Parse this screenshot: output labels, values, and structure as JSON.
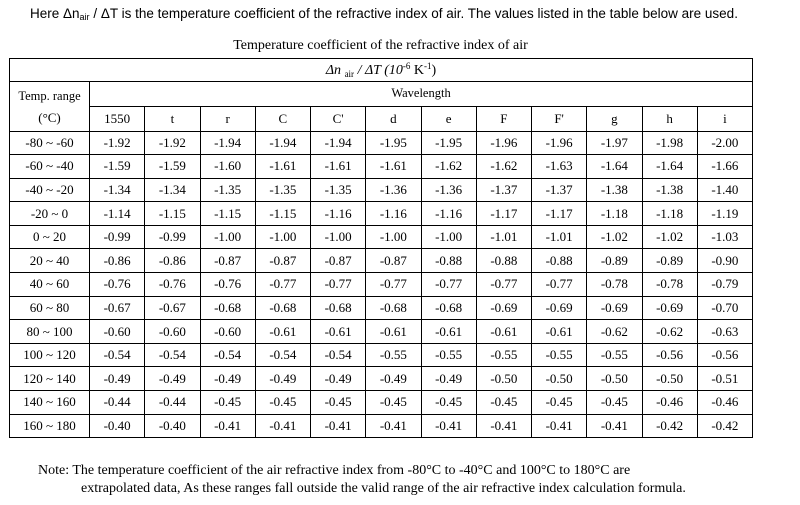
{
  "intro": {
    "prefix": "Here Δn",
    "sub": "air",
    "suffix": " / ΔT is the temperature coefficient of the refractive index of air. The values listed in the table below are used."
  },
  "table": {
    "caption": "Temperature coefficient of the refractive index of air",
    "unit_header": {
      "pre": "Δn ",
      "sub": "air",
      "mid": " / ΔT (10",
      "sup1": "-6",
      "mid2": " K",
      "sup2": "-1",
      "post": ")"
    },
    "range_label": "Temp. range",
    "range_unit": "(°C)",
    "wavelength_label": "Wavelength",
    "columns": [
      "1550",
      "t",
      "r",
      "C",
      "C'",
      "d",
      "e",
      "F",
      "F'",
      "g",
      "h",
      "i"
    ],
    "rows": [
      {
        "range": "-80 ~ -60",
        "values": [
          "-1.92",
          "-1.92",
          "-1.94",
          "-1.94",
          "-1.94",
          "-1.95",
          "-1.95",
          "-1.96",
          "-1.96",
          "-1.97",
          "-1.98",
          "-2.00"
        ]
      },
      {
        "range": "-60 ~ -40",
        "values": [
          "-1.59",
          "-1.59",
          "-1.60",
          "-1.61",
          "-1.61",
          "-1.61",
          "-1.62",
          "-1.62",
          "-1.63",
          "-1.64",
          "-1.64",
          "-1.66"
        ]
      },
      {
        "range": "-40 ~ -20",
        "values": [
          "-1.34",
          "-1.34",
          "-1.35",
          "-1.35",
          "-1.35",
          "-1.36",
          "-1.36",
          "-1.37",
          "-1.37",
          "-1.38",
          "-1.38",
          "-1.40"
        ]
      },
      {
        "range": "-20 ~ 0",
        "values": [
          "-1.14",
          "-1.15",
          "-1.15",
          "-1.15",
          "-1.16",
          "-1.16",
          "-1.16",
          "-1.17",
          "-1.17",
          "-1.18",
          "-1.18",
          "-1.19"
        ]
      },
      {
        "range": "0 ~ 20",
        "values": [
          "-0.99",
          "-0.99",
          "-1.00",
          "-1.00",
          "-1.00",
          "-1.00",
          "-1.00",
          "-1.01",
          "-1.01",
          "-1.02",
          "-1.02",
          "-1.03"
        ]
      },
      {
        "range": "20 ~ 40",
        "values": [
          "-0.86",
          "-0.86",
          "-0.87",
          "-0.87",
          "-0.87",
          "-0.87",
          "-0.88",
          "-0.88",
          "-0.88",
          "-0.89",
          "-0.89",
          "-0.90"
        ]
      },
      {
        "range": "40 ~ 60",
        "values": [
          "-0.76",
          "-0.76",
          "-0.76",
          "-0.77",
          "-0.77",
          "-0.77",
          "-0.77",
          "-0.77",
          "-0.77",
          "-0.78",
          "-0.78",
          "-0.79"
        ]
      },
      {
        "range": "60 ~ 80",
        "values": [
          "-0.67",
          "-0.67",
          "-0.68",
          "-0.68",
          "-0.68",
          "-0.68",
          "-0.68",
          "-0.69",
          "-0.69",
          "-0.69",
          "-0.69",
          "-0.70"
        ]
      },
      {
        "range": "80 ~ 100",
        "values": [
          "-0.60",
          "-0.60",
          "-0.60",
          "-0.61",
          "-0.61",
          "-0.61",
          "-0.61",
          "-0.61",
          "-0.61",
          "-0.62",
          "-0.62",
          "-0.63"
        ]
      },
      {
        "range": "100 ~ 120",
        "values": [
          "-0.54",
          "-0.54",
          "-0.54",
          "-0.54",
          "-0.54",
          "-0.55",
          "-0.55",
          "-0.55",
          "-0.55",
          "-0.55",
          "-0.56",
          "-0.56"
        ]
      },
      {
        "range": "120 ~ 140",
        "values": [
          "-0.49",
          "-0.49",
          "-0.49",
          "-0.49",
          "-0.49",
          "-0.49",
          "-0.49",
          "-0.50",
          "-0.50",
          "-0.50",
          "-0.50",
          "-0.51"
        ]
      },
      {
        "range": "140 ~ 160",
        "values": [
          "-0.44",
          "-0.44",
          "-0.45",
          "-0.45",
          "-0.45",
          "-0.45",
          "-0.45",
          "-0.45",
          "-0.45",
          "-0.45",
          "-0.46",
          "-0.46"
        ]
      },
      {
        "range": "160 ~ 180",
        "values": [
          "-0.40",
          "-0.40",
          "-0.41",
          "-0.41",
          "-0.41",
          "-0.41",
          "-0.41",
          "-0.41",
          "-0.41",
          "-0.41",
          "-0.42",
          "-0.42"
        ]
      }
    ]
  },
  "note": {
    "line1": "Note: The temperature coefficient of the air refractive index from -80°C to -40°C and 100°C to 180°C are",
    "line2": "extrapolated data, As these ranges fall outside the valid range of the air refractive index calculation formula."
  }
}
